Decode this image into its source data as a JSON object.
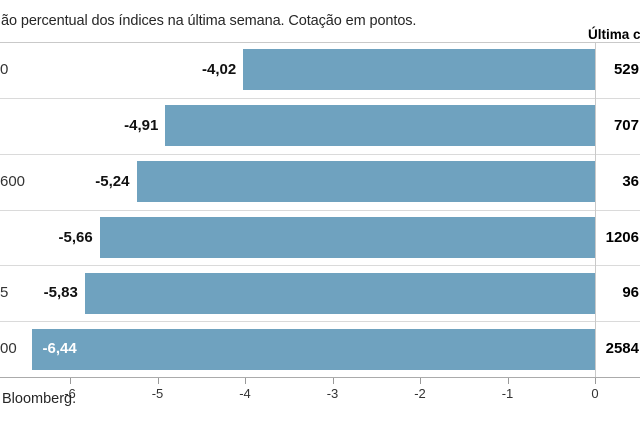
{
  "page": {
    "title_visible": "ão percentual dos índices na última semana. Cotação em pontos.",
    "last_quote_column_header_visible": "Última c",
    "source_visible": "Bloomberg."
  },
  "colors": {
    "bar": "#6fa2bf",
    "row_separator": "#dadada",
    "axis_line": "#ababab",
    "zero_column_line": "#c9c9c9",
    "bar_label_inside": "#ffffff",
    "text": "#1d1d1b"
  },
  "chart_data": {
    "type": "bar",
    "orientation": "horizontal",
    "title": "ão percentual dos índices na última semana. Cotação em pontos.",
    "subtitle_note": "weekly percent change of stock indices; quotes in points",
    "categories_visible": [
      "0",
      "",
      "600",
      "",
      "5",
      "00"
    ],
    "values": [
      -4.02,
      -4.91,
      -5.24,
      -5.66,
      -5.83,
      -6.44
    ],
    "value_labels": [
      "-4,02",
      "-4,91",
      "-5,24",
      "-5,66",
      "-5,83",
      "-6,44"
    ],
    "last_quotes_visible": [
      "529",
      "707",
      "36",
      "1206",
      "96",
      "2584"
    ],
    "last_quote_column_header": "Última c",
    "xlim": [
      -6.8,
      0
    ],
    "x_ticks": [
      -6,
      -5,
      -4,
      -3,
      -2,
      -1,
      0
    ],
    "x_tick_labels": [
      "-6",
      "-5",
      "-4",
      "-3",
      "-2",
      "-1",
      "0"
    ],
    "grid": "horizontal row separators only",
    "legend": "none",
    "source": "Bloomberg."
  }
}
